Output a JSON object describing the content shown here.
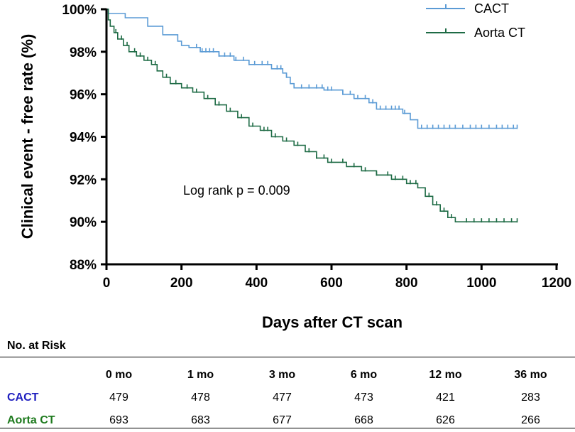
{
  "chart_data": {
    "type": "line",
    "subtype": "kaplan-meier",
    "title": "",
    "xlabel": "Days after CT scan",
    "ylabel": "Clinical event - free rate (%)",
    "xlim": [
      0,
      1200
    ],
    "ylim": [
      88,
      100
    ],
    "xticks": [
      0,
      200,
      400,
      600,
      800,
      1000,
      1200
    ],
    "yticks": [
      88,
      90,
      92,
      94,
      96,
      98,
      100
    ],
    "ytick_labels": [
      "88%",
      "90%",
      "92%",
      "94%",
      "96%",
      "98%",
      "100%"
    ],
    "legend_position": "top-right",
    "annotation": "Log rank p = 0.009",
    "series": [
      {
        "name": "CACT",
        "color": "#5b9bd5",
        "points": [
          [
            0,
            100
          ],
          [
            5,
            99.8
          ],
          [
            50,
            99.6
          ],
          [
            110,
            99.2
          ],
          [
            150,
            98.8
          ],
          [
            190,
            98.5
          ],
          [
            200,
            98.3
          ],
          [
            220,
            98.2
          ],
          [
            250,
            98.0
          ],
          [
            300,
            97.8
          ],
          [
            340,
            97.6
          ],
          [
            380,
            97.4
          ],
          [
            440,
            97.2
          ],
          [
            470,
            97.0
          ],
          [
            480,
            96.8
          ],
          [
            490,
            96.5
          ],
          [
            500,
            96.3
          ],
          [
            580,
            96.2
          ],
          [
            630,
            96.0
          ],
          [
            660,
            95.8
          ],
          [
            700,
            95.6
          ],
          [
            720,
            95.3
          ],
          [
            790,
            95.1
          ],
          [
            810,
            94.8
          ],
          [
            830,
            94.4
          ],
          [
            1095,
            94.4
          ]
        ],
        "censor_x": [
          240,
          255,
          265,
          275,
          285,
          300,
          315,
          330,
          345,
          365,
          380,
          395,
          415,
          430,
          455,
          465,
          480,
          520,
          540,
          560,
          575,
          590,
          600,
          630,
          650,
          670,
          690,
          710,
          730,
          745,
          760,
          770,
          780,
          795,
          840,
          855,
          870,
          885,
          900,
          915,
          930,
          950,
          970,
          985,
          1000,
          1020,
          1040,
          1055,
          1070,
          1085,
          1095
        ]
      },
      {
        "name": "Aorta CT",
        "color": "#1e6b45",
        "points": [
          [
            0,
            100
          ],
          [
            5,
            99.5
          ],
          [
            10,
            99.2
          ],
          [
            20,
            98.9
          ],
          [
            30,
            98.6
          ],
          [
            45,
            98.3
          ],
          [
            60,
            98.0
          ],
          [
            80,
            97.8
          ],
          [
            100,
            97.6
          ],
          [
            120,
            97.4
          ],
          [
            135,
            97.1
          ],
          [
            150,
            96.8
          ],
          [
            170,
            96.5
          ],
          [
            200,
            96.3
          ],
          [
            230,
            96.1
          ],
          [
            260,
            95.8
          ],
          [
            290,
            95.5
          ],
          [
            320,
            95.2
          ],
          [
            350,
            94.9
          ],
          [
            380,
            94.5
          ],
          [
            410,
            94.3
          ],
          [
            440,
            94.0
          ],
          [
            470,
            93.8
          ],
          [
            500,
            93.6
          ],
          [
            530,
            93.3
          ],
          [
            560,
            93.0
          ],
          [
            590,
            92.8
          ],
          [
            640,
            92.6
          ],
          [
            680,
            92.4
          ],
          [
            720,
            92.2
          ],
          [
            760,
            92.0
          ],
          [
            800,
            91.8
          ],
          [
            830,
            91.6
          ],
          [
            850,
            91.2
          ],
          [
            870,
            90.8
          ],
          [
            890,
            90.5
          ],
          [
            910,
            90.2
          ],
          [
            930,
            90.0
          ],
          [
            1095,
            90.0
          ]
        ],
        "censor_x": [
          25,
          40,
          55,
          75,
          90,
          110,
          130,
          160,
          185,
          215,
          240,
          270,
          300,
          330,
          360,
          390,
          420,
          430,
          450,
          480,
          510,
          540,
          560,
          580,
          600,
          630,
          660,
          690,
          720,
          750,
          770,
          790,
          810,
          825,
          860,
          880,
          900,
          920,
          960,
          980,
          1000,
          1020,
          1040,
          1060,
          1080,
          1095
        ]
      }
    ]
  },
  "risk_table": {
    "title": "No. at Risk",
    "columns": [
      "0 mo",
      "1 mo",
      "3 mo",
      "6 mo",
      "12 mo",
      "36 mo"
    ],
    "rows": [
      {
        "name": "CACT",
        "color": "#1f1fbf",
        "values": [
          "479",
          "478",
          "477",
          "473",
          "421",
          "283"
        ]
      },
      {
        "name": "Aorta CT",
        "color": "#1e7a1e",
        "values": [
          "693",
          "683",
          "677",
          "668",
          "626",
          "266"
        ]
      }
    ]
  }
}
